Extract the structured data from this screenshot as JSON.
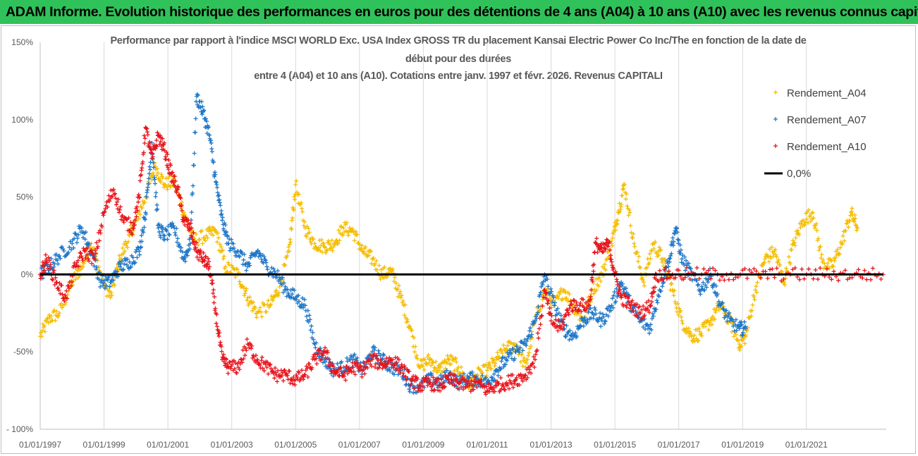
{
  "banner": {
    "title": "ADAM Informe. Evolution historique des performances en euros pour des détentions de 4 ans (A04) à 10 ans (A10) avec les revenus connus capitalisés"
  },
  "chart_data": {
    "type": "scatter",
    "title_lines": [
      "Performance par rapport à l'indice MSCI WORLD Exc. USA Index GROSS TR  du placement Kansai Electric Power Co Inc/The en fonction de la date de",
      "début pour des durées",
      "entre 4 (A04) et 10 ans (A10). Cotations entre janv. 1997 et févr. 2026. Revenus CAPITALI"
    ],
    "y_ticks": [
      "150%",
      "100%",
      "50%",
      "0%",
      "-50%",
      "- 100%"
    ],
    "y_tick_values": [
      1.5,
      1.0,
      0.5,
      0.0,
      -0.5,
      -1.0
    ],
    "ylim": [
      -1.0,
      1.5
    ],
    "x_ticks": [
      "01/01/1997",
      "01/01/1999",
      "01/01/2001",
      "01/01/2003",
      "01/01/2005",
      "01/01/2007",
      "01/01/2009",
      "01/01/2011",
      "01/01/2013",
      "01/01/2015",
      "01/01/2017",
      "01/01/2019",
      "01/01/2021"
    ],
    "x_tick_years": [
      1997,
      1999,
      2001,
      2003,
      2005,
      2007,
      2009,
      2011,
      2013,
      2015,
      2017,
      2019,
      2021
    ],
    "xlim": [
      1997.0,
      2023.5
    ],
    "grid": "vertical",
    "legend_position": "right",
    "series": [
      {
        "name": "Rendement_A04",
        "color": "#f5bd00",
        "marker": "+",
        "points": [
          [
            1997.0,
            -0.4
          ],
          [
            1997.3,
            -0.28
          ],
          [
            1997.6,
            -0.25
          ],
          [
            1998.0,
            -0.05
          ],
          [
            1998.3,
            0.05
          ],
          [
            1998.6,
            0.2
          ],
          [
            1998.9,
            0.0
          ],
          [
            1999.2,
            -0.15
          ],
          [
            1999.5,
            0.1
          ],
          [
            1999.8,
            0.25
          ],
          [
            2000.0,
            0.35
          ],
          [
            2000.3,
            0.5
          ],
          [
            2000.6,
            0.7
          ],
          [
            2000.9,
            0.58
          ],
          [
            2001.2,
            0.6
          ],
          [
            2001.5,
            0.4
          ],
          [
            2001.8,
            0.22
          ],
          [
            2002.2,
            0.25
          ],
          [
            2002.5,
            0.28
          ],
          [
            2002.8,
            0.05
          ],
          [
            2003.2,
            0.0
          ],
          [
            2003.5,
            -0.15
          ],
          [
            2003.8,
            -0.25
          ],
          [
            2004.2,
            -0.2
          ],
          [
            2004.5,
            -0.08
          ],
          [
            2004.8,
            0.15
          ],
          [
            2005.0,
            0.58
          ],
          [
            2005.3,
            0.3
          ],
          [
            2005.6,
            0.2
          ],
          [
            2005.9,
            0.18
          ],
          [
            2006.2,
            0.2
          ],
          [
            2006.5,
            0.3
          ],
          [
            2006.8,
            0.28
          ],
          [
            2007.1,
            0.15
          ],
          [
            2007.4,
            0.1
          ],
          [
            2007.7,
            0.0
          ],
          [
            2008.0,
            0.02
          ],
          [
            2008.3,
            -0.15
          ],
          [
            2008.6,
            -0.35
          ],
          [
            2008.9,
            -0.6
          ],
          [
            2009.2,
            -0.55
          ],
          [
            2009.5,
            -0.62
          ],
          [
            2009.8,
            -0.55
          ],
          [
            2010.1,
            -0.6
          ],
          [
            2010.4,
            -0.72
          ],
          [
            2010.7,
            -0.65
          ],
          [
            2011.0,
            -0.62
          ],
          [
            2011.3,
            -0.55
          ],
          [
            2011.6,
            -0.48
          ],
          [
            2011.9,
            -0.45
          ],
          [
            2012.2,
            -0.6
          ],
          [
            2012.5,
            -0.3
          ],
          [
            2012.8,
            -0.1
          ],
          [
            2013.1,
            -0.2
          ],
          [
            2013.4,
            -0.1
          ],
          [
            2013.7,
            -0.2
          ],
          [
            2014.0,
            -0.3
          ],
          [
            2014.3,
            -0.1
          ],
          [
            2014.6,
            0.0
          ],
          [
            2014.9,
            0.2
          ],
          [
            2015.1,
            0.4
          ],
          [
            2015.3,
            0.58
          ],
          [
            2015.6,
            0.2
          ],
          [
            2015.9,
            -0.05
          ],
          [
            2016.2,
            0.2
          ],
          [
            2016.5,
            0.1
          ],
          [
            2016.8,
            -0.1
          ],
          [
            2017.1,
            -0.3
          ],
          [
            2017.4,
            -0.4
          ],
          [
            2017.7,
            -0.38
          ],
          [
            2018.0,
            -0.3
          ],
          [
            2018.3,
            -0.2
          ],
          [
            2018.6,
            -0.3
          ],
          [
            2018.9,
            -0.45
          ],
          [
            2019.1,
            -0.4
          ],
          [
            2019.4,
            -0.1
          ],
          [
            2019.7,
            0.1
          ],
          [
            2020.0,
            0.15
          ],
          [
            2020.3,
            -0.05
          ],
          [
            2020.6,
            0.2
          ],
          [
            2020.9,
            0.35
          ],
          [
            2021.2,
            0.4
          ],
          [
            2021.5,
            0.08
          ],
          [
            2021.8,
            0.05
          ],
          [
            2022.1,
            0.2
          ],
          [
            2022.4,
            0.4
          ],
          [
            2022.6,
            0.3
          ]
        ]
      },
      {
        "name": "Rendement_A07",
        "color": "#1f77c8",
        "marker": "+",
        "points": [
          [
            1997.0,
            0.0
          ],
          [
            1997.3,
            0.05
          ],
          [
            1997.6,
            0.12
          ],
          [
            1998.0,
            0.2
          ],
          [
            1998.3,
            0.3
          ],
          [
            1998.6,
            0.15
          ],
          [
            1998.9,
            -0.05
          ],
          [
            1999.2,
            -0.05
          ],
          [
            1999.5,
            0.05
          ],
          [
            1999.8,
            0.08
          ],
          [
            2000.1,
            0.15
          ],
          [
            2000.3,
            0.4
          ],
          [
            2000.5,
            0.85
          ],
          [
            2000.7,
            0.3
          ],
          [
            2000.9,
            0.25
          ],
          [
            2001.2,
            0.3
          ],
          [
            2001.5,
            0.1
          ],
          [
            2001.7,
            0.2
          ],
          [
            2001.9,
            1.15
          ],
          [
            2002.1,
            1.05
          ],
          [
            2002.3,
            0.9
          ],
          [
            2002.5,
            0.6
          ],
          [
            2002.7,
            0.35
          ],
          [
            2002.9,
            0.2
          ],
          [
            2003.2,
            0.15
          ],
          [
            2003.5,
            0.05
          ],
          [
            2003.8,
            0.15
          ],
          [
            2004.1,
            0.05
          ],
          [
            2004.4,
            0.0
          ],
          [
            2004.7,
            -0.1
          ],
          [
            2005.0,
            -0.15
          ],
          [
            2005.3,
            -0.2
          ],
          [
            2005.6,
            -0.45
          ],
          [
            2005.9,
            -0.55
          ],
          [
            2006.2,
            -0.62
          ],
          [
            2006.5,
            -0.6
          ],
          [
            2006.8,
            -0.55
          ],
          [
            2007.1,
            -0.62
          ],
          [
            2007.4,
            -0.5
          ],
          [
            2007.7,
            -0.55
          ],
          [
            2008.0,
            -0.6
          ],
          [
            2008.3,
            -0.62
          ],
          [
            2008.6,
            -0.72
          ],
          [
            2008.9,
            -0.72
          ],
          [
            2009.2,
            -0.68
          ],
          [
            2009.5,
            -0.7
          ],
          [
            2009.8,
            -0.65
          ],
          [
            2010.1,
            -0.7
          ],
          [
            2010.4,
            -0.67
          ],
          [
            2010.7,
            -0.68
          ],
          [
            2011.0,
            -0.7
          ],
          [
            2011.3,
            -0.62
          ],
          [
            2011.6,
            -0.55
          ],
          [
            2011.9,
            -0.5
          ],
          [
            2012.2,
            -0.45
          ],
          [
            2012.5,
            -0.3
          ],
          [
            2012.8,
            0.0
          ],
          [
            2013.1,
            -0.2
          ],
          [
            2013.4,
            -0.35
          ],
          [
            2013.7,
            -0.4
          ],
          [
            2014.0,
            -0.3
          ],
          [
            2014.3,
            -0.25
          ],
          [
            2014.6,
            -0.3
          ],
          [
            2014.9,
            -0.2
          ],
          [
            2015.2,
            -0.05
          ],
          [
            2015.5,
            -0.2
          ],
          [
            2015.8,
            -0.3
          ],
          [
            2016.1,
            -0.35
          ],
          [
            2016.4,
            -0.1
          ],
          [
            2016.7,
            0.1
          ],
          [
            2016.9,
            0.3
          ],
          [
            2017.1,
            0.1
          ],
          [
            2017.4,
            0.0
          ],
          [
            2017.7,
            -0.1
          ],
          [
            2018.0,
            0.0
          ],
          [
            2018.3,
            -0.2
          ],
          [
            2018.6,
            -0.3
          ],
          [
            2018.9,
            -0.35
          ],
          [
            2019.1,
            -0.35
          ]
        ]
      },
      {
        "name": "Rendement_A10",
        "color": "#e8141c",
        "marker": "+",
        "points": [
          [
            1997.0,
            0.0
          ],
          [
            1997.2,
            0.1
          ],
          [
            1997.5,
            -0.05
          ],
          [
            1997.8,
            -0.15
          ],
          [
            1998.1,
            0.05
          ],
          [
            1998.4,
            0.15
          ],
          [
            1998.7,
            0.1
          ],
          [
            1999.0,
            0.4
          ],
          [
            1999.3,
            0.55
          ],
          [
            1999.6,
            0.35
          ],
          [
            1999.9,
            0.3
          ],
          [
            2000.1,
            0.5
          ],
          [
            2000.3,
            0.95
          ],
          [
            2000.5,
            0.75
          ],
          [
            2000.7,
            0.9
          ],
          [
            2000.9,
            0.8
          ],
          [
            2001.1,
            0.65
          ],
          [
            2001.3,
            0.55
          ],
          [
            2001.5,
            0.35
          ],
          [
            2001.7,
            0.3
          ],
          [
            2001.9,
            0.15
          ],
          [
            2002.1,
            0.1
          ],
          [
            2002.3,
            0.05
          ],
          [
            2002.5,
            -0.25
          ],
          [
            2002.7,
            -0.55
          ],
          [
            2002.9,
            -0.6
          ],
          [
            2003.2,
            -0.6
          ],
          [
            2003.5,
            -0.45
          ],
          [
            2003.8,
            -0.55
          ],
          [
            2004.1,
            -0.6
          ],
          [
            2004.4,
            -0.65
          ],
          [
            2004.7,
            -0.65
          ],
          [
            2005.0,
            -0.68
          ],
          [
            2005.3,
            -0.65
          ],
          [
            2005.6,
            -0.55
          ],
          [
            2005.9,
            -0.5
          ],
          [
            2006.2,
            -0.62
          ],
          [
            2006.5,
            -0.65
          ],
          [
            2006.8,
            -0.6
          ],
          [
            2007.1,
            -0.62
          ],
          [
            2007.4,
            -0.55
          ],
          [
            2007.7,
            -0.58
          ],
          [
            2008.0,
            -0.55
          ],
          [
            2008.3,
            -0.6
          ],
          [
            2008.6,
            -0.68
          ],
          [
            2008.9,
            -0.72
          ],
          [
            2009.2,
            -0.7
          ],
          [
            2009.5,
            -0.72
          ],
          [
            2009.8,
            -0.68
          ],
          [
            2010.1,
            -0.7
          ],
          [
            2010.4,
            -0.72
          ],
          [
            2010.7,
            -0.7
          ],
          [
            2011.0,
            -0.75
          ],
          [
            2011.3,
            -0.72
          ],
          [
            2011.6,
            -0.7
          ],
          [
            2011.9,
            -0.68
          ],
          [
            2012.2,
            -0.65
          ],
          [
            2012.5,
            -0.55
          ],
          [
            2012.8,
            -0.1
          ],
          [
            2013.0,
            -0.3
          ],
          [
            2013.3,
            -0.35
          ],
          [
            2013.6,
            -0.2
          ],
          [
            2013.9,
            -0.2
          ],
          [
            2014.2,
            -0.2
          ],
          [
            2014.4,
            0.2
          ],
          [
            2014.6,
            0.15
          ],
          [
            2014.8,
            0.2
          ],
          [
            2015.0,
            0.0
          ],
          [
            2015.2,
            -0.15
          ],
          [
            2015.5,
            -0.2
          ],
          [
            2015.8,
            -0.25
          ],
          [
            2016.1,
            -0.2
          ],
          [
            2016.3,
            0.0
          ],
          [
            2016.8,
            0.0
          ],
          [
            2017.5,
            0.0
          ],
          [
            2018.5,
            0.0
          ],
          [
            2019.5,
            0.0
          ],
          [
            2020.5,
            0.0
          ],
          [
            2021.5,
            0.0
          ],
          [
            2022.5,
            0.0
          ],
          [
            2023.4,
            0.0
          ]
        ]
      },
      {
        "name": "0,0%",
        "color": "#000000",
        "marker": "line",
        "points": [
          [
            1997.0,
            0.0
          ],
          [
            2023.4,
            0.0
          ]
        ]
      }
    ]
  }
}
